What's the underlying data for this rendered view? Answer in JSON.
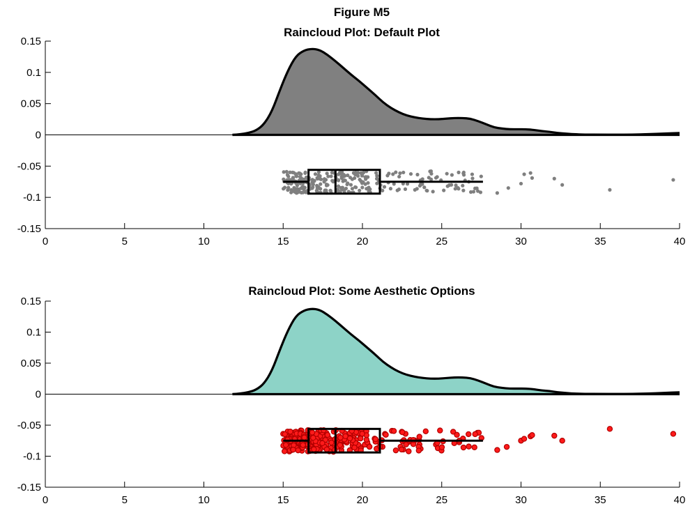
{
  "figure": {
    "title": "Figure M5"
  },
  "chart_data": [
    {
      "type": "raincloud",
      "title": "Raincloud Plot: Default Plot",
      "xlabel": "",
      "ylabel": "",
      "xlim": [
        0,
        40
      ],
      "ylim": [
        -0.15,
        0.15
      ],
      "xticks": [
        "0",
        "5",
        "10",
        "15",
        "20",
        "25",
        "30",
        "35",
        "40"
      ],
      "yticks": [
        "-0.15",
        "-0.1",
        "-0.05",
        "0",
        "0.05",
        "0.1",
        "0.15"
      ],
      "cloud_color": "#808080",
      "rain_color": "#7f7f7f",
      "rain_edge_color": "#7f7f7f",
      "grid": false,
      "density": {
        "x": [
          11.8,
          12.3,
          12.8,
          13.3,
          13.8,
          14.3,
          14.8,
          15.3,
          15.8,
          16.3,
          16.8,
          17.3,
          17.8,
          18.3,
          18.8,
          19.3,
          19.8,
          20.3,
          20.8,
          21.3,
          21.8,
          22.3,
          22.8,
          23.3,
          23.8,
          24.3,
          24.8,
          25.3,
          25.8,
          26.3,
          26.8,
          27.3,
          27.8,
          28.3,
          28.8,
          29.3,
          29.8,
          30.3,
          30.8,
          31.3,
          31.8,
          32.3,
          32.8,
          33.3,
          34,
          35,
          36,
          37,
          38,
          39,
          40
        ],
        "y": [
          0,
          0.001,
          0.003,
          0.007,
          0.017,
          0.038,
          0.072,
          0.103,
          0.126,
          0.135,
          0.138,
          0.136,
          0.128,
          0.118,
          0.107,
          0.096,
          0.086,
          0.075,
          0.064,
          0.052,
          0.043,
          0.036,
          0.031,
          0.028,
          0.026,
          0.025,
          0.025,
          0.026,
          0.027,
          0.027,
          0.026,
          0.022,
          0.017,
          0.012,
          0.01,
          0.009,
          0.009,
          0.009,
          0.008,
          0.006,
          0.005,
          0.003,
          0.002,
          0.001,
          0.0005,
          0.0003,
          0.0003,
          0.0004,
          0.001,
          0.002,
          0.003
        ]
      },
      "box": {
        "q1": 16.6,
        "median": 18.3,
        "q3": 21.1,
        "whisker_low": 15.0,
        "whisker_high": 27.6,
        "y": -0.075
      },
      "outliers": [
        {
          "x": 28.5,
          "y": -0.093
        },
        {
          "x": 29.2,
          "y": -0.085
        },
        {
          "x": 30.0,
          "y": -0.078
        },
        {
          "x": 30.2,
          "y": -0.063
        },
        {
          "x": 30.6,
          "y": -0.061
        },
        {
          "x": 30.7,
          "y": -0.069
        },
        {
          "x": 32.1,
          "y": -0.07
        },
        {
          "x": 32.6,
          "y": -0.08
        },
        {
          "x": 35.6,
          "y": -0.088
        },
        {
          "x": 39.6,
          "y": -0.072
        }
      ]
    },
    {
      "type": "raincloud",
      "title": "Raincloud Plot: Some Aesthetic Options",
      "xlabel": "",
      "ylabel": "",
      "xlim": [
        0,
        40
      ],
      "ylim": [
        -0.15,
        0.15
      ],
      "xticks": [
        "0",
        "5",
        "10",
        "15",
        "20",
        "25",
        "30",
        "35",
        "40"
      ],
      "yticks": [
        "-0.15",
        "-0.1",
        "-0.05",
        "0",
        "0.05",
        "0.1",
        "0.15"
      ],
      "cloud_color": "#8dd3c7",
      "rain_color": "#ff1a1a",
      "rain_edge_color": "#b30000",
      "grid": false,
      "density": {
        "x": [
          11.8,
          12.3,
          12.8,
          13.3,
          13.8,
          14.3,
          14.8,
          15.3,
          15.8,
          16.3,
          16.8,
          17.3,
          17.8,
          18.3,
          18.8,
          19.3,
          19.8,
          20.3,
          20.8,
          21.3,
          21.8,
          22.3,
          22.8,
          23.3,
          23.8,
          24.3,
          24.8,
          25.3,
          25.8,
          26.3,
          26.8,
          27.3,
          27.8,
          28.3,
          28.8,
          29.3,
          29.8,
          30.3,
          30.8,
          31.3,
          31.8,
          32.3,
          32.8,
          33.3,
          34,
          35,
          36,
          37,
          38,
          39,
          40
        ],
        "y": [
          0,
          0.001,
          0.003,
          0.007,
          0.017,
          0.038,
          0.072,
          0.103,
          0.126,
          0.135,
          0.138,
          0.136,
          0.128,
          0.118,
          0.107,
          0.096,
          0.086,
          0.075,
          0.064,
          0.052,
          0.043,
          0.036,
          0.031,
          0.028,
          0.026,
          0.025,
          0.025,
          0.026,
          0.027,
          0.027,
          0.026,
          0.022,
          0.017,
          0.012,
          0.01,
          0.009,
          0.009,
          0.009,
          0.008,
          0.006,
          0.005,
          0.003,
          0.002,
          0.001,
          0.0005,
          0.0003,
          0.0003,
          0.0004,
          0.001,
          0.002,
          0.003
        ]
      },
      "box": {
        "q1": 16.6,
        "median": 18.3,
        "q3": 21.1,
        "whisker_low": 15.0,
        "whisker_high": 27.6,
        "y": -0.075
      },
      "outliers": [
        {
          "x": 28.5,
          "y": -0.09
        },
        {
          "x": 29.1,
          "y": -0.085
        },
        {
          "x": 30.0,
          "y": -0.075
        },
        {
          "x": 30.2,
          "y": -0.072
        },
        {
          "x": 30.6,
          "y": -0.068
        },
        {
          "x": 30.7,
          "y": -0.066
        },
        {
          "x": 32.1,
          "y": -0.067
        },
        {
          "x": 32.6,
          "y": -0.075
        },
        {
          "x": 35.6,
          "y": -0.056
        },
        {
          "x": 39.6,
          "y": -0.064
        }
      ]
    }
  ]
}
